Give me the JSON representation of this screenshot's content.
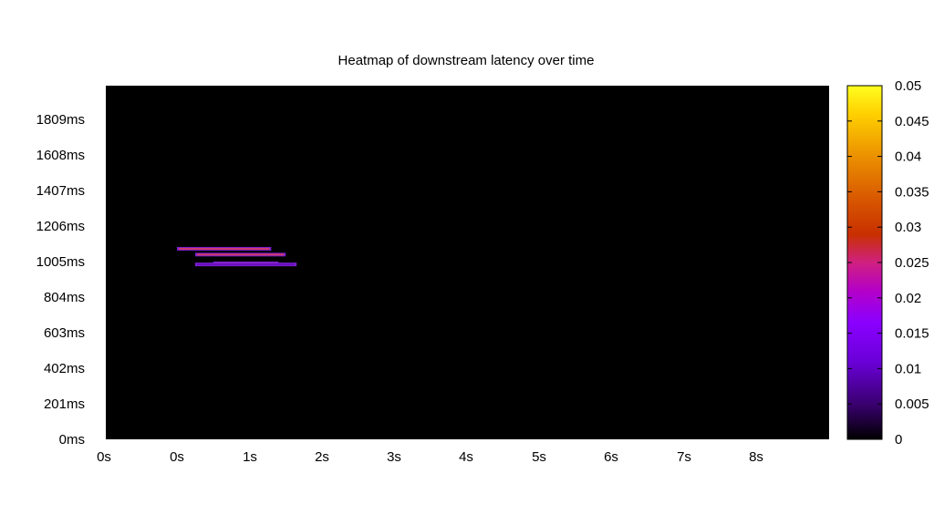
{
  "chart_data": {
    "type": "heatmap",
    "title": "Heatmap of downstream latency over time",
    "xlabel": "",
    "ylabel": "",
    "x_ticks": [
      "0s",
      "0s",
      "1s",
      "2s",
      "3s",
      "4s",
      "5s",
      "6s",
      "7s",
      "8s"
    ],
    "y_ticks": [
      "0ms",
      "201ms",
      "402ms",
      "603ms",
      "804ms",
      "1005ms",
      "1206ms",
      "1407ms",
      "1608ms",
      "1809ms"
    ],
    "ylim_ms": [
      0,
      2010
    ],
    "colorbar": {
      "ticks": [
        "0",
        "0.005",
        "0.01",
        "0.015",
        "0.02",
        "0.025",
        "0.03",
        "0.035",
        "0.04",
        "0.045",
        "0.05"
      ],
      "range": [
        0,
        0.05
      ],
      "colors": [
        "#000000",
        "#3a0070",
        "#7a00ff",
        "#b400c8",
        "#d0207a",
        "#c83000",
        "#e06a00",
        "#f0a000",
        "#ffd000",
        "#ffff20"
      ]
    },
    "background_color": "#000000",
    "cells": [
      {
        "t_start_s": 0.0,
        "t_end_s": 1.3,
        "latency_ms": 1083,
        "value": 0.024
      },
      {
        "t_start_s": 0.25,
        "t_end_s": 1.5,
        "latency_ms": 1050,
        "value": 0.024
      },
      {
        "t_start_s": 0.5,
        "t_end_s": 1.4,
        "latency_ms": 1000,
        "value": 0.024
      },
      {
        "t_start_s": 0.25,
        "t_end_s": 1.65,
        "latency_ms": 994,
        "value": 0.015
      }
    ]
  }
}
